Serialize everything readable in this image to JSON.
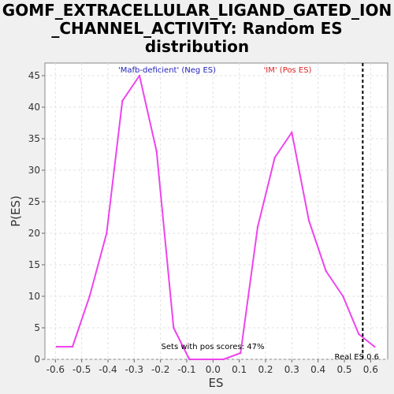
{
  "chart_data": {
    "type": "line",
    "title": "GOMF_EXTRACELLULAR_LIGAND_GATED_ION\n_CHANNEL_ACTIVITY: Random ES\ndistribution",
    "xlabel": "ES",
    "ylabel": "P(ES)",
    "xlim": [
      -0.64,
      0.665
    ],
    "ylim": [
      0,
      47
    ],
    "xticks": [
      -0.6,
      -0.5,
      -0.4,
      -0.3,
      -0.2,
      -0.1,
      0.0,
      0.1,
      0.2,
      0.3,
      0.4,
      0.5,
      0.6
    ],
    "xtick_labels": [
      "-0.6",
      "-0.5",
      "-0.4",
      "-0.3",
      "-0.2",
      "-0.1",
      "0.0",
      "0.1",
      "0.2",
      "0.3",
      "0.4",
      "0.5",
      "0.6"
    ],
    "yticks": [
      0,
      5,
      10,
      15,
      20,
      25,
      30,
      35,
      40,
      45
    ],
    "grid": true,
    "series": [
      {
        "color": "#ee44ee",
        "x": [
          -0.595,
          -0.535,
          -0.47,
          -0.405,
          -0.345,
          -0.28,
          -0.215,
          -0.15,
          -0.09,
          -0.025,
          0.04,
          0.105,
          0.17,
          0.235,
          0.3,
          0.365,
          0.43,
          0.495,
          0.555,
          0.615
        ],
        "y": [
          2,
          2,
          10,
          20,
          41,
          45,
          33,
          5,
          0,
          0,
          0,
          1,
          21,
          32,
          36,
          22,
          14,
          10,
          4,
          2
        ]
      }
    ],
    "real_es": {
      "x": 0.57,
      "label": "Real ES 0.6",
      "color": "#000000"
    },
    "annotations": {
      "neg_label": "'Mafb-deficient' (Neg ES)",
      "neg_color": "#2222bb",
      "pos_label": "'IM' (Pos ES)",
      "pos_color": "#dd2222",
      "pos_scores": "Sets with pos scores: 47%"
    }
  }
}
